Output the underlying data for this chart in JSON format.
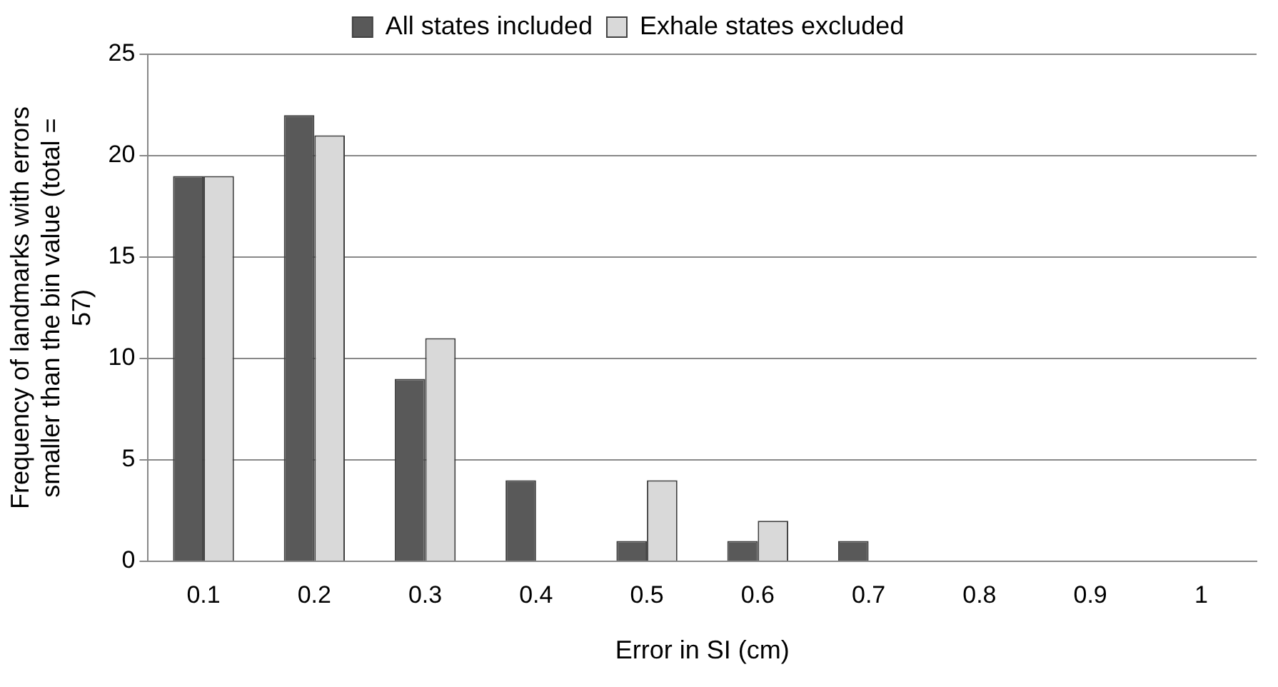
{
  "chart_data": {
    "type": "bar",
    "xlabel": "Error in SI (cm)",
    "ylabel": "Frequency of landmarks with errors smaller than the bin value (total = 57)",
    "categories": [
      "0.1",
      "0.2",
      "0.3",
      "0.4",
      "0.5",
      "0.6",
      "0.7",
      "0.8",
      "0.9",
      "1"
    ],
    "series": [
      {
        "name": "All states included",
        "color": "#595959",
        "values": [
          19,
          22,
          9,
          4,
          1,
          1,
          1,
          0,
          0,
          0
        ]
      },
      {
        "name": "Exhale states excluded",
        "color": "#d9d9d9",
        "values": [
          19,
          21,
          11,
          0,
          4,
          2,
          0,
          0,
          0,
          0
        ]
      }
    ],
    "ylim": [
      0,
      25
    ],
    "yticks": [
      0,
      5,
      10,
      15,
      20,
      25
    ],
    "grid": "y",
    "legend": "top"
  }
}
